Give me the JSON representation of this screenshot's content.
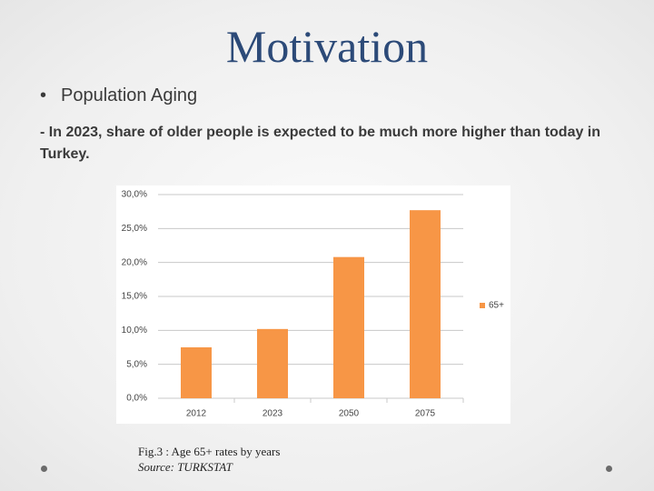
{
  "title": "Motivation",
  "bullet": "Population Aging",
  "text": "- In 2023, share of older people is expected to be much more higher than today in Turkey.",
  "caption": {
    "figure": "Fig.3 : Age 65+ rates by years",
    "source": "Source: TURKSTAT"
  },
  "chart_data": {
    "type": "bar",
    "categories": [
      "2012",
      "2023",
      "2050",
      "2075"
    ],
    "series": [
      {
        "name": "65+",
        "color": "#f79646",
        "values": [
          7.5,
          10.2,
          20.8,
          27.7
        ]
      }
    ],
    "ylim": [
      0,
      30
    ],
    "yticks": [
      {
        "value": 0,
        "label": "0,0%"
      },
      {
        "value": 5,
        "label": "5,0%"
      },
      {
        "value": 10,
        "label": "10,0%"
      },
      {
        "value": 15,
        "label": "15,0%"
      },
      {
        "value": 20,
        "label": "20,0%"
      },
      {
        "value": 25,
        "label": "25,0%"
      },
      {
        "value": 30,
        "label": "30,0%"
      }
    ],
    "grid": true,
    "legend": "right"
  }
}
